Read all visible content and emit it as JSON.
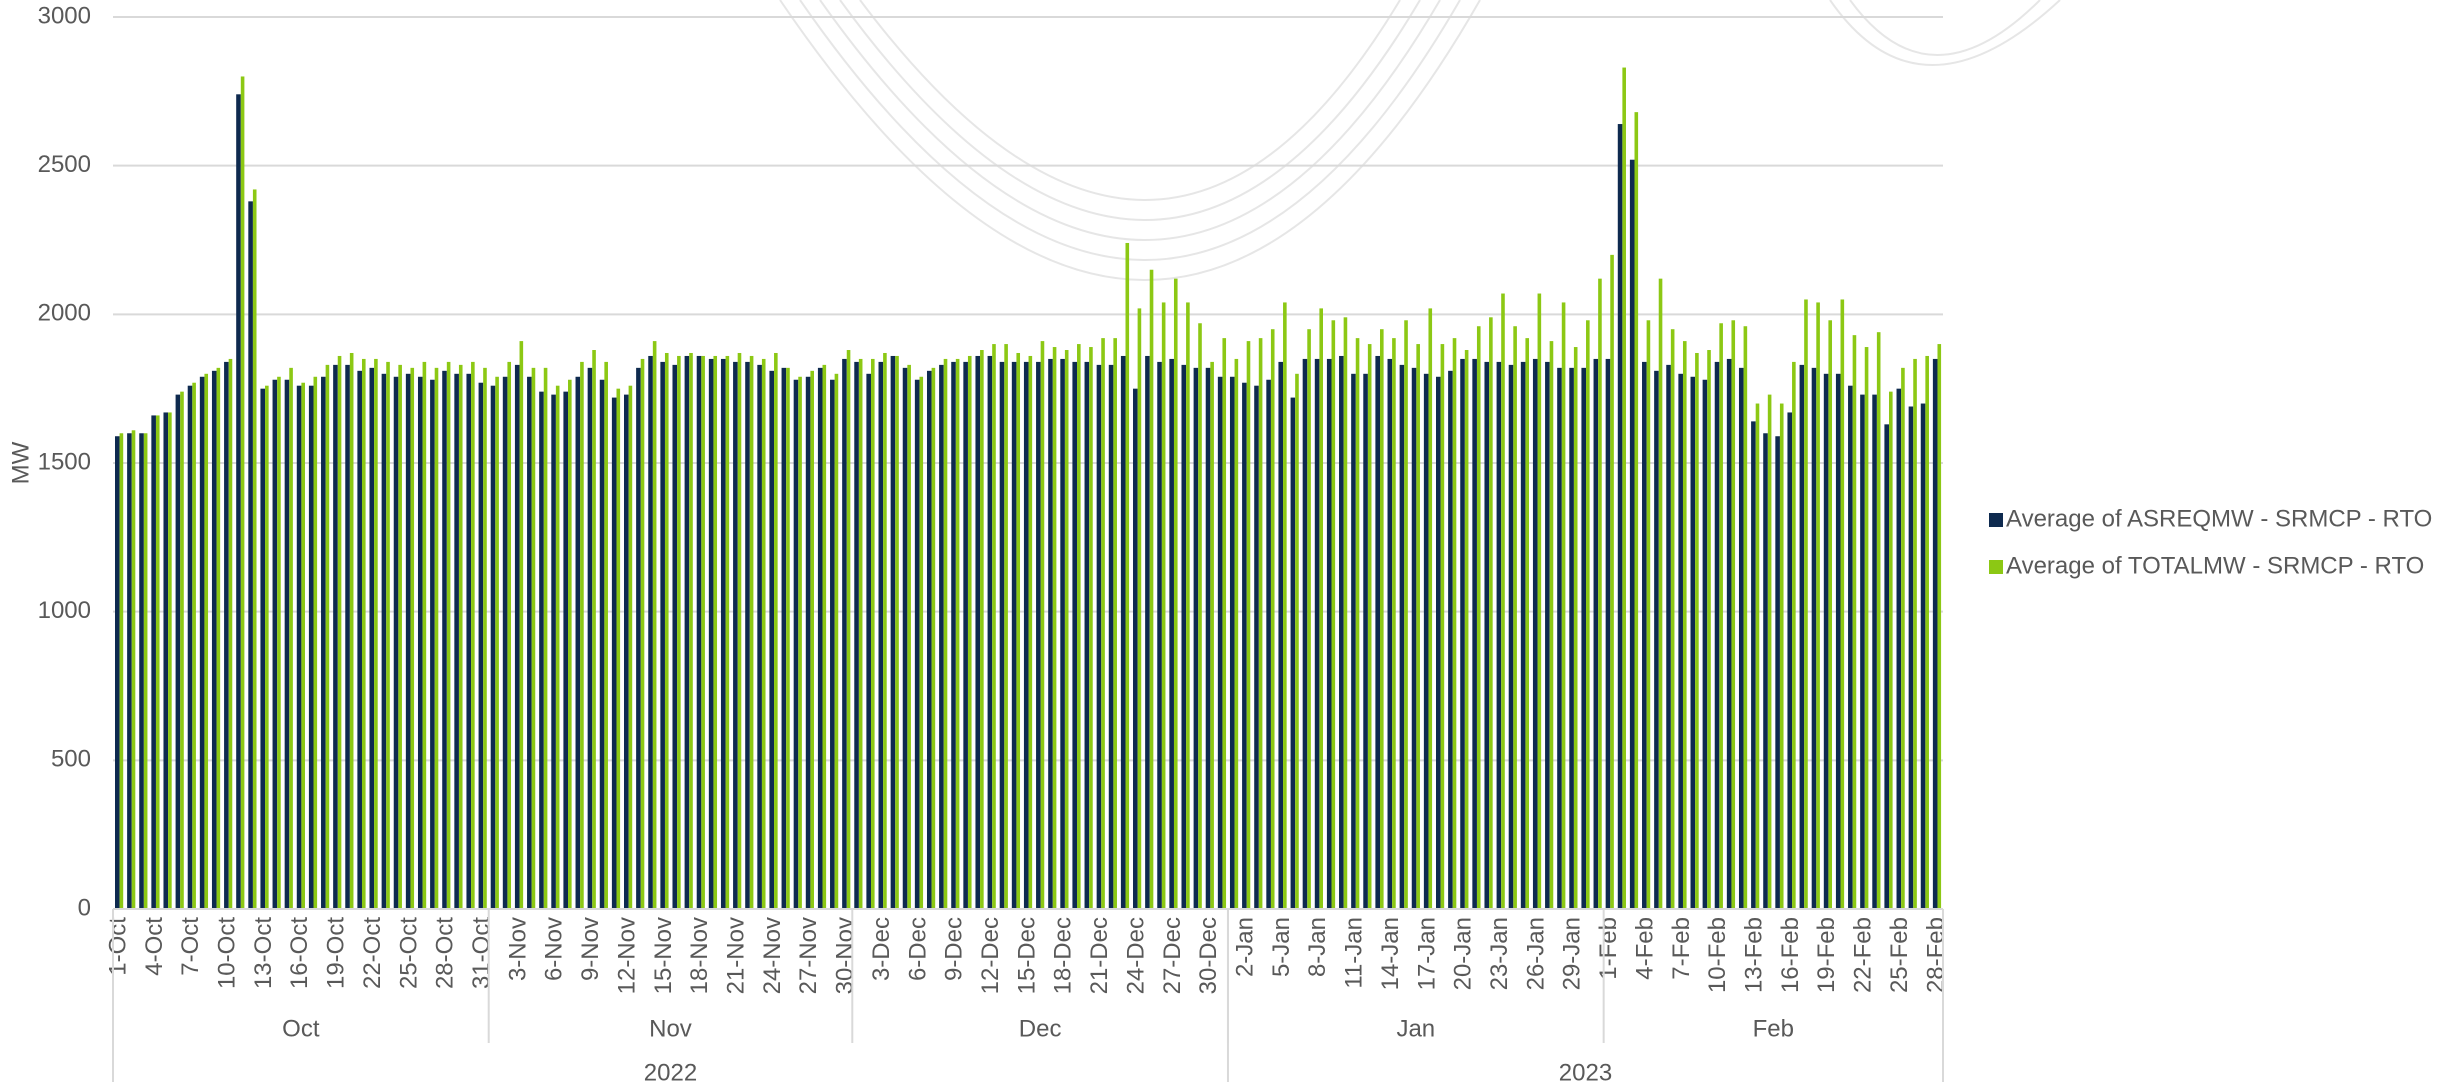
{
  "chart_data": {
    "type": "bar",
    "y_label": "MW",
    "categories": [
      "1-Oct",
      null,
      null,
      "4-Oct",
      null,
      null,
      "7-Oct",
      null,
      null,
      "10-Oct",
      null,
      null,
      "13-Oct",
      null,
      null,
      "16-Oct",
      null,
      null,
      "19-Oct",
      null,
      null,
      "22-Oct",
      null,
      null,
      "25-Oct",
      null,
      null,
      "28-Oct",
      null,
      null,
      "31-Oct",
      null,
      null,
      "3-Nov",
      null,
      null,
      "6-Nov",
      null,
      null,
      "9-Nov",
      null,
      null,
      "12-Nov",
      null,
      null,
      "15-Nov",
      null,
      null,
      "18-Nov",
      null,
      null,
      "21-Nov",
      null,
      null,
      "24-Nov",
      null,
      null,
      "27-Nov",
      null,
      null,
      "30-Nov",
      null,
      null,
      "3-Dec",
      null,
      null,
      "6-Dec",
      null,
      null,
      "9-Dec",
      null,
      null,
      "12-Dec",
      null,
      null,
      "15-Dec",
      null,
      null,
      "18-Dec",
      null,
      null,
      "21-Dec",
      null,
      null,
      "24-Dec",
      null,
      null,
      "27-Dec",
      null,
      null,
      "30-Dec",
      null,
      null,
      "2-Jan",
      null,
      null,
      "5-Jan",
      null,
      null,
      "8-Jan",
      null,
      null,
      "11-Jan",
      null,
      null,
      "14-Jan",
      null,
      null,
      "17-Jan",
      null,
      null,
      "20-Jan",
      null,
      null,
      "23-Jan",
      null,
      null,
      "26-Jan",
      null,
      null,
      "29-Jan",
      null,
      null,
      "1-Feb",
      null,
      null,
      "4-Feb",
      null,
      null,
      "7-Feb",
      null,
      null,
      "10-Feb",
      null,
      null,
      "13-Feb",
      null,
      null,
      "16-Feb",
      null,
      null,
      "19-Feb",
      null,
      null,
      "22-Feb",
      null,
      null,
      "25-Feb",
      null,
      null,
      "28-Feb"
    ],
    "month_groups": [
      {
        "label": "Oct",
        "count": 31
      },
      {
        "label": "Nov",
        "count": 30
      },
      {
        "label": "Dec",
        "count": 31
      },
      {
        "label": "Jan",
        "count": 31
      },
      {
        "label": "Feb",
        "count": 28
      }
    ],
    "year_groups": [
      {
        "label": "2022",
        "count": 3
      },
      {
        "label": "2023",
        "count": 2
      }
    ],
    "series": [
      {
        "name": "Average of ASREQMW - SRMCP - RTO",
        "color": "#0e2a4f",
        "values": [
          1590,
          1600,
          1600,
          1660,
          1670,
          1730,
          1760,
          1790,
          1810,
          1840,
          2740,
          2380,
          1750,
          1780,
          1780,
          1760,
          1760,
          1790,
          1830,
          1830,
          1810,
          1820,
          1800,
          1790,
          1800,
          1790,
          1780,
          1810,
          1800,
          1800,
          1770,
          1760,
          1790,
          1830,
          1790,
          1740,
          1730,
          1740,
          1790,
          1820,
          1780,
          1720,
          1730,
          1820,
          1860,
          1840,
          1830,
          1860,
          1860,
          1850,
          1850,
          1840,
          1840,
          1830,
          1810,
          1820,
          1780,
          1790,
          1820,
          1780,
          1850,
          1840,
          1800,
          1840,
          1860,
          1820,
          1780,
          1810,
          1830,
          1840,
          1840,
          1860,
          1860,
          1840,
          1840,
          1840,
          1840,
          1850,
          1850,
          1840,
          1840,
          1830,
          1830,
          1860,
          1750,
          1860,
          1840,
          1850,
          1830,
          1820,
          1820,
          1790,
          1790,
          1770,
          1760,
          1780,
          1840,
          1720,
          1850,
          1850,
          1850,
          1860,
          1800,
          1800,
          1860,
          1850,
          1830,
          1820,
          1800,
          1790,
          1810,
          1850,
          1850,
          1840,
          1840,
          1830,
          1840,
          1850,
          1840,
          1820,
          1820,
          1820,
          1850,
          1850,
          2640,
          2520,
          1840,
          1810,
          1830,
          1800,
          1790,
          1780,
          1840,
          1850,
          1820,
          1640,
          1600,
          1590,
          1670,
          1830,
          1820,
          1800,
          1800,
          1760,
          1730,
          1730,
          1630,
          1750,
          1690,
          1700,
          1850
        ]
      },
      {
        "name": "Average of TOTALMW - SRMCP - RTO",
        "color": "#8cc814",
        "values": [
          1600,
          1610,
          1600,
          1660,
          1670,
          1740,
          1770,
          1800,
          1820,
          1850,
          2800,
          2420,
          1760,
          1790,
          1820,
          1770,
          1790,
          1830,
          1860,
          1870,
          1850,
          1850,
          1840,
          1830,
          1820,
          1840,
          1820,
          1840,
          1830,
          1840,
          1820,
          1790,
          1840,
          1910,
          1820,
          1820,
          1760,
          1780,
          1840,
          1880,
          1840,
          1750,
          1760,
          1850,
          1910,
          1870,
          1860,
          1870,
          1860,
          1860,
          1860,
          1870,
          1860,
          1850,
          1870,
          1820,
          1790,
          1810,
          1830,
          1800,
          1880,
          1850,
          1850,
          1870,
          1860,
          1830,
          1790,
          1820,
          1850,
          1850,
          1860,
          1880,
          1900,
          1900,
          1870,
          1860,
          1910,
          1890,
          1880,
          1900,
          1890,
          1920,
          1920,
          2240,
          2020,
          2150,
          2040,
          2120,
          2040,
          1970,
          1840,
          1920,
          1850,
          1910,
          1920,
          1950,
          2040,
          1800,
          1950,
          2020,
          1980,
          1990,
          1920,
          1900,
          1950,
          1920,
          1980,
          1900,
          2020,
          1900,
          1920,
          1880,
          1960,
          1990,
          2070,
          1960,
          1920,
          2070,
          1910,
          2040,
          1890,
          1980,
          2120,
          2200,
          2830,
          2680,
          1980,
          2120,
          1950,
          1910,
          1870,
          1880,
          1970,
          1980,
          1960,
          1700,
          1730,
          1700,
          1840,
          2050,
          2040,
          1980,
          2050,
          1930,
          1890,
          1940,
          1740,
          1820,
          1850,
          1860,
          1900
        ]
      }
    ],
    "ylim": [
      0,
      3000
    ],
    "yticks": [
      0,
      500,
      1000,
      1500,
      2000,
      2500,
      3000
    ],
    "grid": true,
    "legend": "right"
  }
}
